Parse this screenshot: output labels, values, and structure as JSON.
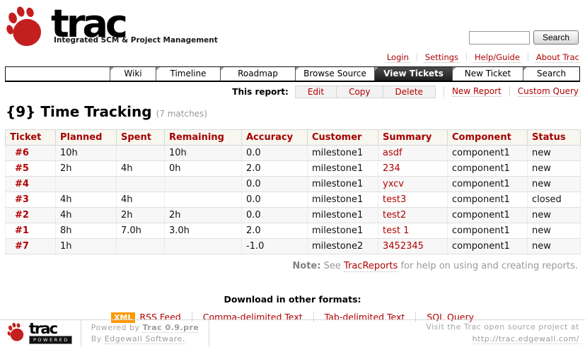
{
  "header": {
    "logo": {
      "name": "trac",
      "tagline": "Integrated SCM & Project Management"
    },
    "search": {
      "button_label": "Search",
      "value": ""
    },
    "meta_links": [
      {
        "label": "Login"
      },
      {
        "label": "Settings"
      },
      {
        "label": "Help/Guide"
      },
      {
        "label": "About Trac"
      }
    ]
  },
  "nav": {
    "tabs": [
      {
        "label": "Wiki",
        "active": false
      },
      {
        "label": "Timeline",
        "active": false
      },
      {
        "label": "Roadmap",
        "active": false
      },
      {
        "label": "Browse Source",
        "active": false
      },
      {
        "label": "View Tickets",
        "active": true
      },
      {
        "label": "New Ticket",
        "active": false
      },
      {
        "label": "Search",
        "active": false
      }
    ]
  },
  "report_toolbar": {
    "label": "This report:",
    "buttons": [
      {
        "label": "Edit"
      },
      {
        "label": "Copy"
      },
      {
        "label": "Delete"
      }
    ],
    "links": [
      {
        "label": "New Report"
      },
      {
        "label": "Custom Query"
      }
    ]
  },
  "page": {
    "title": "{9} Time Tracking",
    "matches": "(7 matches)"
  },
  "table": {
    "columns": [
      "Ticket",
      "Planned",
      "Spent",
      "Remaining",
      "Accuracy",
      "Customer",
      "Summary",
      "Component",
      "Status"
    ],
    "fields": [
      "ticket",
      "planned",
      "spent",
      "remaining",
      "accuracy",
      "customer",
      "summary",
      "component",
      "status"
    ],
    "rows": [
      {
        "ticket": "#6",
        "planned": "10h",
        "spent": "",
        "remaining": "10h",
        "accuracy": "0.0",
        "customer": "milestone1",
        "summary": "asdf",
        "component": "component1",
        "status": "new"
      },
      {
        "ticket": "#5",
        "planned": "2h",
        "spent": "4h",
        "remaining": "0h",
        "accuracy": "2.0",
        "customer": "milestone1",
        "summary": "234",
        "component": "component1",
        "status": "new"
      },
      {
        "ticket": "#4",
        "planned": "",
        "spent": "",
        "remaining": "",
        "accuracy": "0.0",
        "customer": "milestone1",
        "summary": "yxcv",
        "component": "component1",
        "status": "new"
      },
      {
        "ticket": "#3",
        "planned": "4h",
        "spent": "4h",
        "remaining": "",
        "accuracy": "0.0",
        "customer": "milestone1",
        "summary": "test3",
        "component": "component1",
        "status": "closed"
      },
      {
        "ticket": "#2",
        "planned": "4h",
        "spent": "2h",
        "remaining": "2h",
        "accuracy": "0.0",
        "customer": "milestone1",
        "summary": "test2",
        "component": "component1",
        "status": "new"
      },
      {
        "ticket": "#1",
        "planned": "8h",
        "spent": "7.0h",
        "remaining": "3.0h",
        "accuracy": "2.0",
        "customer": "milestone1",
        "summary": "test 1",
        "component": "component1",
        "status": "new"
      },
      {
        "ticket": "#7",
        "planned": "1h",
        "spent": "",
        "remaining": "",
        "accuracy": "-1.0",
        "customer": "milestone2",
        "summary": "3452345",
        "component": "component1",
        "status": "new"
      }
    ]
  },
  "note": {
    "label": "Note:",
    "text_before": "See",
    "link": "TracReports",
    "text_after": "for help on using and creating reports."
  },
  "downloads": {
    "title": "Download in other formats:",
    "xml_badge": "XML",
    "links": [
      {
        "label": "RSS Feed"
      },
      {
        "label": "Comma-delimited Text"
      },
      {
        "label": "Tab-delimited Text"
      },
      {
        "label": "SQL Query"
      }
    ]
  },
  "footer": {
    "logo": {
      "name": "trac",
      "badge": "POWERED"
    },
    "powered_by": "Powered by",
    "version_link": "Trac 0.9.pre",
    "by": "By",
    "company_link": "Edgewall Software.",
    "visit_line": "Visit the Trac open source project at",
    "visit_url": "http://trac.edgewall.com/"
  },
  "colors": {
    "link_red": "#b00000",
    "table_header_red": "#a40000",
    "logo_red": "#c41f1f",
    "active_tab_bg": "#333333",
    "xml_badge_bg": "#ff9900",
    "border_light": "#d7d7d7"
  }
}
